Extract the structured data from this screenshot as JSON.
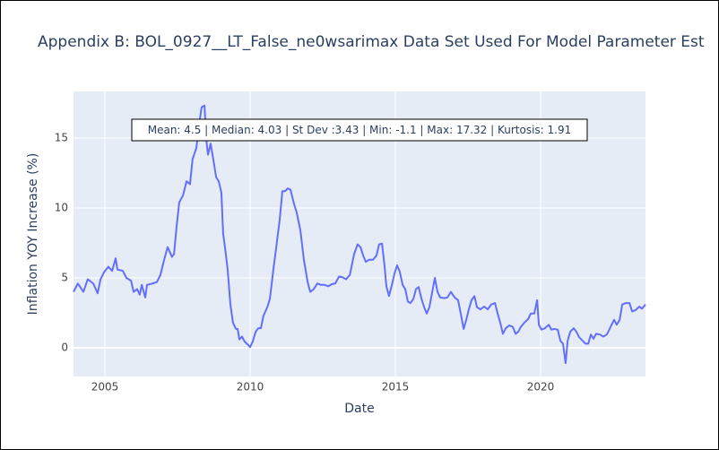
{
  "chart_data": {
    "type": "line",
    "title": "Appendix B: BOL_0927__LT_False_ne0wsarimax Data Set Used For Model Parameter Est",
    "x_label": "Date",
    "y_label": "Inflation YOY Increase (%)",
    "annotation": "Mean: 4.5 | Median: 4.03 | St Dev :3.43 | Min: -1.1 | Max: 17.32 | Kurtosis: 1.91",
    "xlim": [
      2003.92,
      2023.61
    ],
    "xticks": [
      2005,
      2010,
      2015,
      2020
    ],
    "ylim": [
      -2.05,
      18.33
    ],
    "yticks": [
      0,
      5,
      10,
      15
    ],
    "grid": true,
    "series": [
      {
        "color": "#636efa",
        "x": [
          2003.92,
          2004.07,
          2004.26,
          2004.41,
          2004.6,
          2004.75,
          2004.85,
          2004.97,
          2005.12,
          2005.25,
          2005.37,
          2005.43,
          2005.62,
          2005.74,
          2005.9,
          2005.99,
          2006.11,
          2006.2,
          2006.27,
          2006.39,
          2006.45,
          2006.64,
          2006.79,
          2006.91,
          2007.04,
          2007.16,
          2007.31,
          2007.38,
          2007.47,
          2007.56,
          2007.69,
          2007.81,
          2007.93,
          2008.02,
          2008.15,
          2008.24,
          2008.33,
          2008.43,
          2008.49,
          2008.55,
          2008.64,
          2008.73,
          2008.83,
          2008.92,
          2009.01,
          2009.07,
          2009.17,
          2009.23,
          2009.32,
          2009.41,
          2009.51,
          2009.57,
          2009.63,
          2009.72,
          2009.81,
          2009.91,
          2010.0,
          2010.09,
          2010.19,
          2010.28,
          2010.37,
          2010.46,
          2010.59,
          2010.68,
          2010.8,
          2010.9,
          2011.02,
          2011.11,
          2011.2,
          2011.3,
          2011.39,
          2011.51,
          2011.6,
          2011.73,
          2011.85,
          2011.98,
          2012.07,
          2012.19,
          2012.31,
          2012.44,
          2012.56,
          2012.69,
          2012.81,
          2012.93,
          2013.06,
          2013.18,
          2013.3,
          2013.43,
          2013.58,
          2013.7,
          2013.8,
          2013.89,
          2013.98,
          2014.1,
          2014.23,
          2014.35,
          2014.44,
          2014.54,
          2014.63,
          2014.69,
          2014.78,
          2014.88,
          2014.97,
          2015.06,
          2015.15,
          2015.25,
          2015.34,
          2015.43,
          2015.52,
          2015.62,
          2015.71,
          2015.8,
          2015.9,
          2015.99,
          2016.08,
          2016.17,
          2016.27,
          2016.36,
          2016.45,
          2016.54,
          2016.7,
          2016.79,
          2016.91,
          2017.04,
          2017.16,
          2017.25,
          2017.35,
          2017.44,
          2017.53,
          2017.62,
          2017.72,
          2017.81,
          2017.93,
          2018.06,
          2018.18,
          2018.3,
          2018.43,
          2018.52,
          2018.61,
          2018.7,
          2018.8,
          2018.92,
          2019.04,
          2019.14,
          2019.23,
          2019.32,
          2019.44,
          2019.57,
          2019.66,
          2019.78,
          2019.88,
          2019.94,
          2020.03,
          2020.15,
          2020.28,
          2020.37,
          2020.46,
          2020.59,
          2020.68,
          2020.77,
          2020.86,
          2020.93,
          2021.02,
          2021.14,
          2021.23,
          2021.33,
          2021.45,
          2021.54,
          2021.64,
          2021.73,
          2021.82,
          2021.91,
          2022.04,
          2022.16,
          2022.28,
          2022.41,
          2022.53,
          2022.62,
          2022.72,
          2022.81,
          2022.93,
          2023.06,
          2023.15,
          2023.27,
          2023.4,
          2023.49,
          2023.61
        ],
        "values": [
          4.0,
          4.6,
          4.0,
          4.9,
          4.6,
          3.9,
          4.9,
          5.4,
          5.8,
          5.5,
          6.4,
          5.6,
          5.5,
          5.0,
          4.8,
          4.0,
          4.2,
          3.8,
          4.5,
          3.6,
          4.5,
          4.6,
          4.7,
          5.2,
          6.3,
          7.2,
          6.5,
          6.7,
          8.7,
          10.4,
          10.9,
          11.9,
          11.7,
          13.5,
          14.3,
          15.9,
          17.2,
          17.32,
          14.9,
          13.8,
          14.6,
          13.5,
          12.2,
          11.9,
          11.1,
          8.2,
          6.6,
          5.5,
          3.1,
          1.8,
          1.35,
          1.35,
          0.6,
          0.8,
          0.45,
          0.25,
          0.05,
          0.45,
          1.15,
          1.4,
          1.4,
          2.3,
          2.9,
          3.5,
          5.6,
          7.2,
          9.2,
          11.2,
          11.2,
          11.4,
          11.3,
          10.3,
          9.7,
          8.4,
          6.3,
          4.7,
          4.0,
          4.2,
          4.6,
          4.5,
          4.5,
          4.4,
          4.55,
          4.6,
          5.1,
          5.05,
          4.9,
          5.2,
          6.7,
          7.4,
          7.2,
          6.6,
          6.15,
          6.3,
          6.3,
          6.6,
          7.4,
          7.45,
          5.8,
          4.4,
          3.7,
          4.5,
          5.3,
          5.9,
          5.45,
          4.5,
          4.2,
          3.3,
          3.2,
          3.5,
          4.2,
          4.35,
          3.5,
          2.9,
          2.45,
          2.9,
          4.0,
          5.0,
          4.0,
          3.6,
          3.55,
          3.6,
          4.0,
          3.6,
          3.4,
          2.45,
          1.35,
          2.0,
          2.75,
          3.4,
          3.7,
          2.9,
          2.75,
          2.95,
          2.75,
          3.1,
          3.2,
          2.45,
          1.8,
          1.0,
          1.4,
          1.6,
          1.5,
          1.0,
          1.15,
          1.5,
          1.8,
          2.05,
          2.45,
          2.45,
          3.4,
          1.65,
          1.3,
          1.4,
          1.65,
          1.3,
          1.35,
          1.3,
          0.5,
          0.3,
          -1.1,
          0.5,
          1.15,
          1.4,
          1.15,
          0.75,
          0.5,
          0.3,
          0.3,
          0.95,
          0.65,
          1.0,
          0.95,
          0.8,
          0.95,
          1.5,
          2.0,
          1.65,
          2.0,
          3.1,
          3.2,
          3.2,
          2.6,
          2.7,
          2.95,
          2.8,
          3.1
        ]
      }
    ]
  }
}
